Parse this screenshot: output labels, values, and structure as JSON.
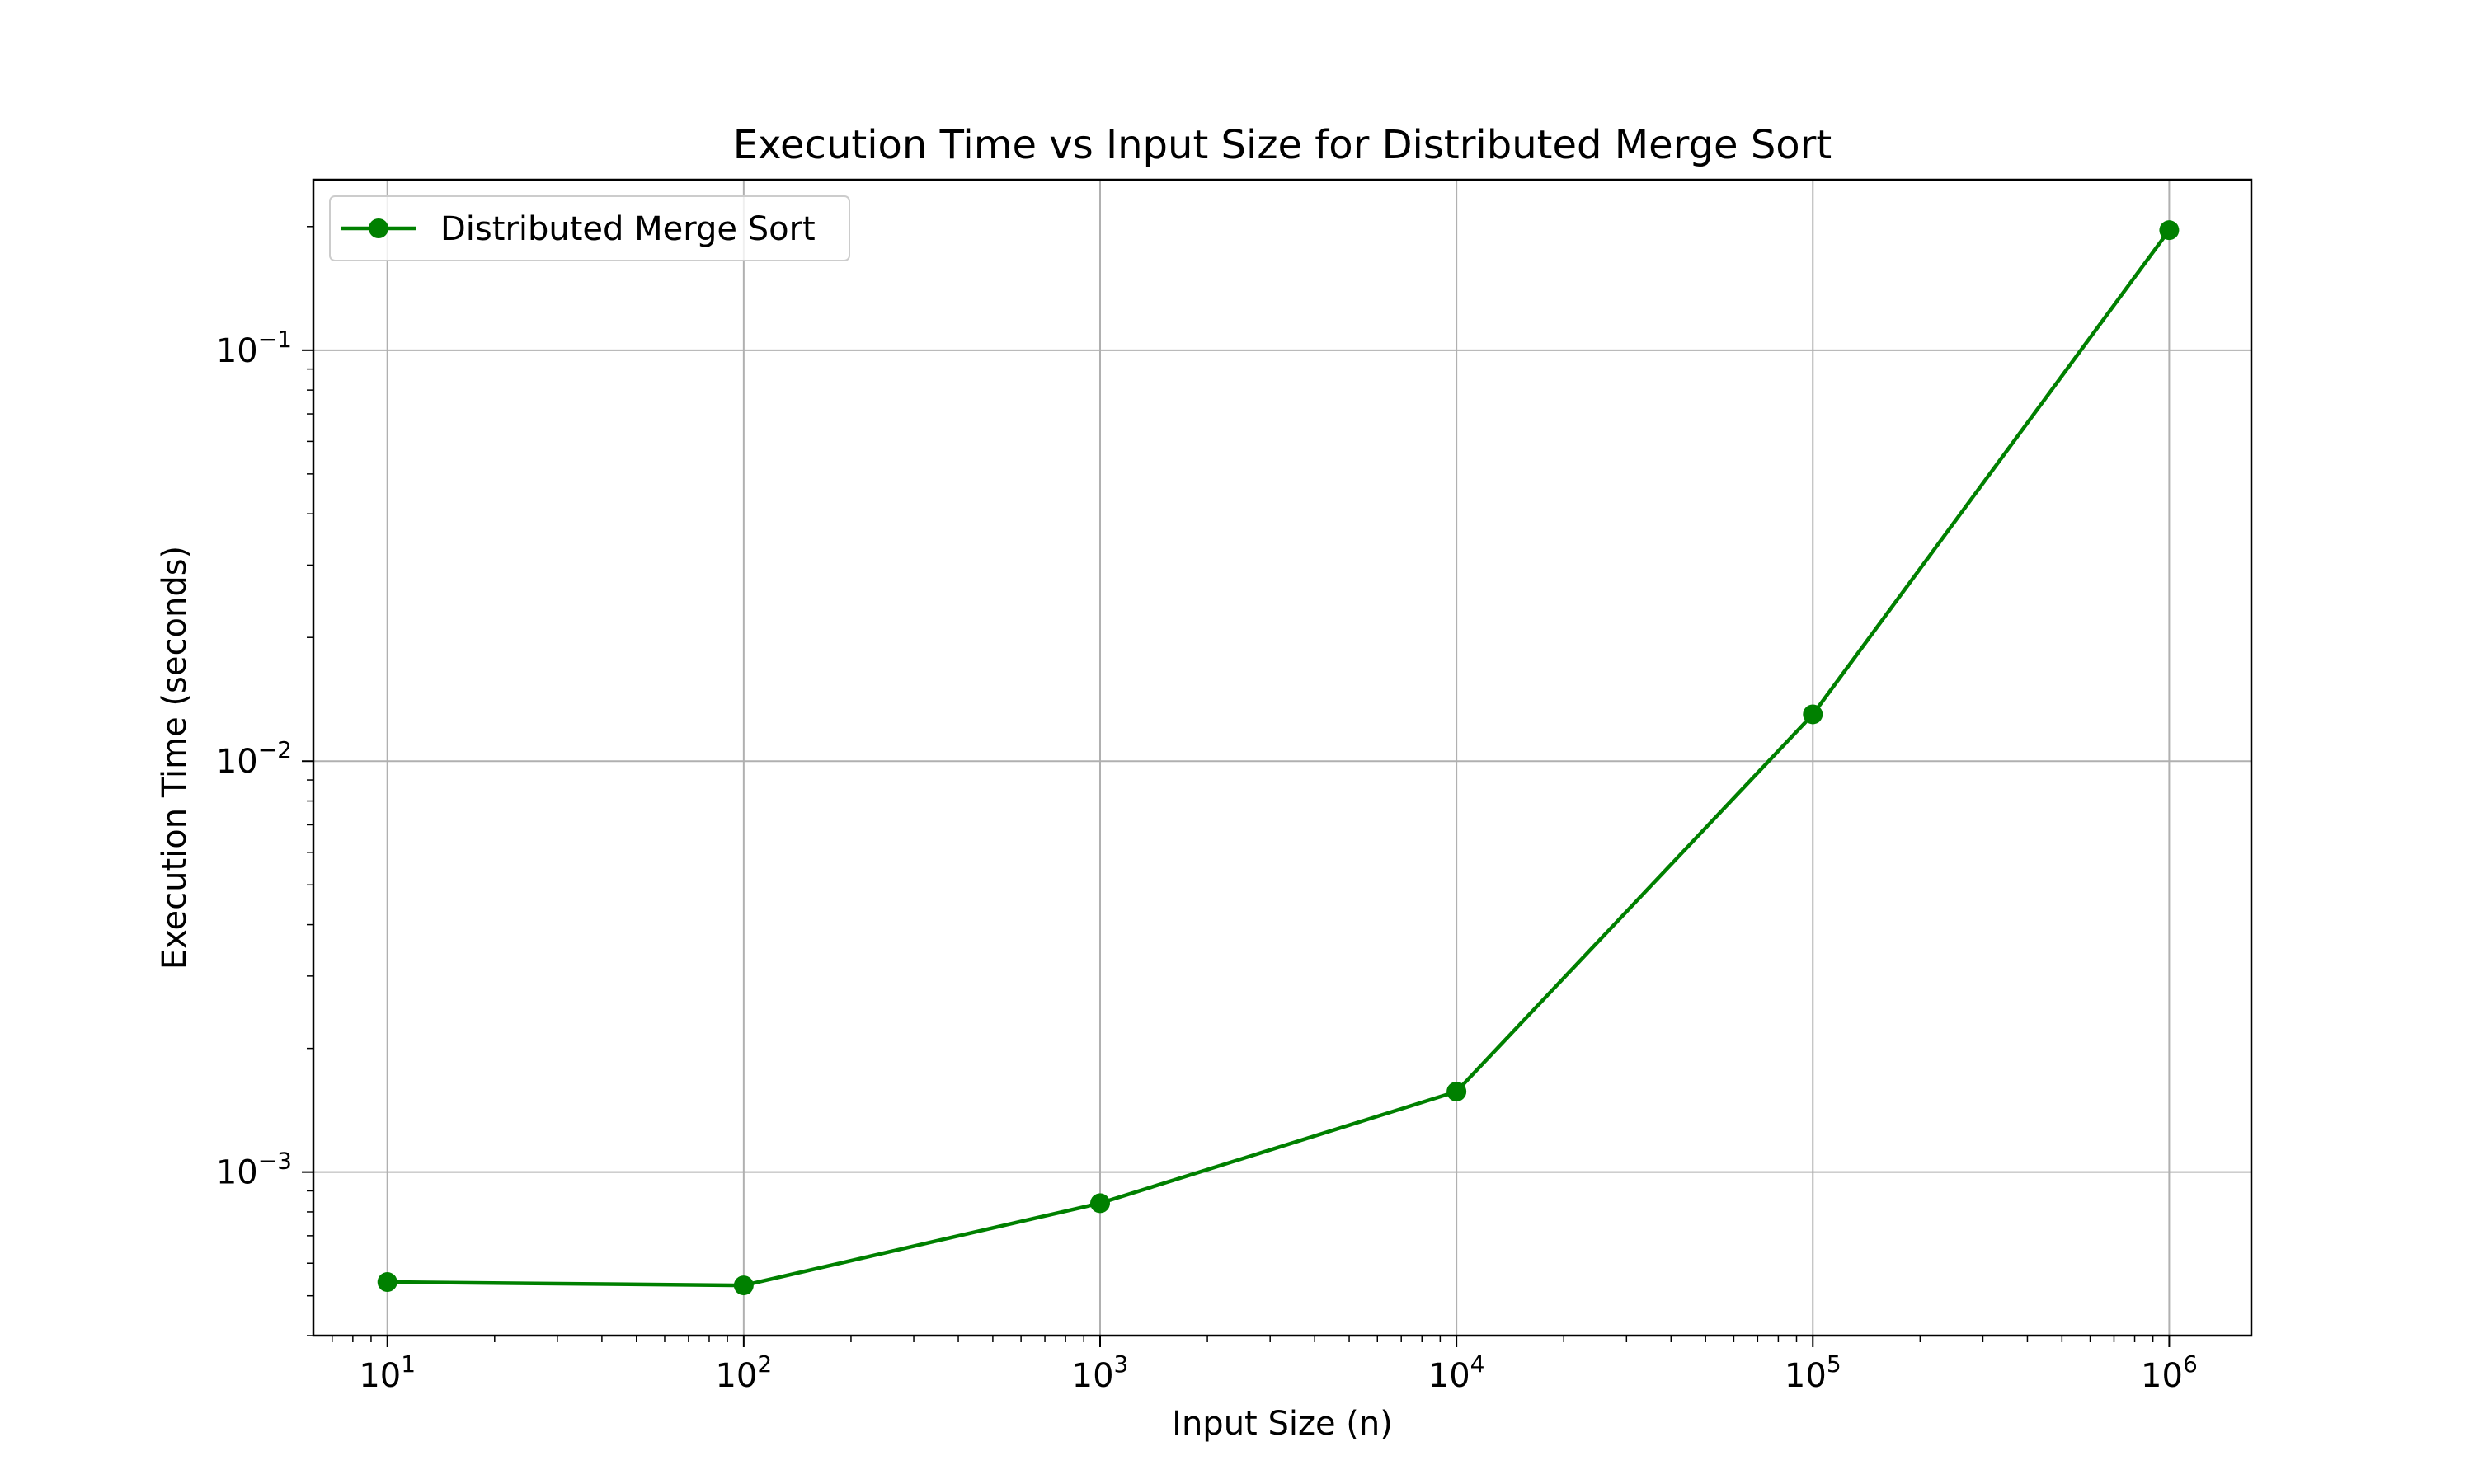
{
  "chart_data": {
    "type": "line",
    "title": "Execution Time vs Input Size for Distributed Merge Sort",
    "xlabel": "Input Size (n)",
    "ylabel": "Execution Time (seconds)",
    "x_scale": "log",
    "y_scale": "log",
    "xlim": [
      6.2,
      1700000
    ],
    "ylim": [
      0.0004,
      0.26
    ],
    "x_ticks": [
      {
        "value": 10,
        "base": "10",
        "exp": "1"
      },
      {
        "value": 100,
        "base": "10",
        "exp": "2"
      },
      {
        "value": 1000,
        "base": "10",
        "exp": "3"
      },
      {
        "value": 10000,
        "base": "10",
        "exp": "4"
      },
      {
        "value": 100000,
        "base": "10",
        "exp": "5"
      },
      {
        "value": 1000000,
        "base": "10",
        "exp": "6"
      }
    ],
    "y_ticks": [
      {
        "value": 0.001,
        "base": "10",
        "exp": "−3"
      },
      {
        "value": 0.01,
        "base": "10",
        "exp": "−2"
      },
      {
        "value": 0.1,
        "base": "10",
        "exp": "−1"
      }
    ],
    "grid": true,
    "legend_position": "top-left",
    "series": [
      {
        "name": "Distributed Merge Sort",
        "color": "#008000",
        "marker": "circle",
        "x": [
          10,
          100,
          1000,
          10000,
          100000,
          1000000
        ],
        "y": [
          0.00054,
          0.00053,
          0.00084,
          0.00157,
          0.013,
          0.196
        ]
      }
    ]
  }
}
